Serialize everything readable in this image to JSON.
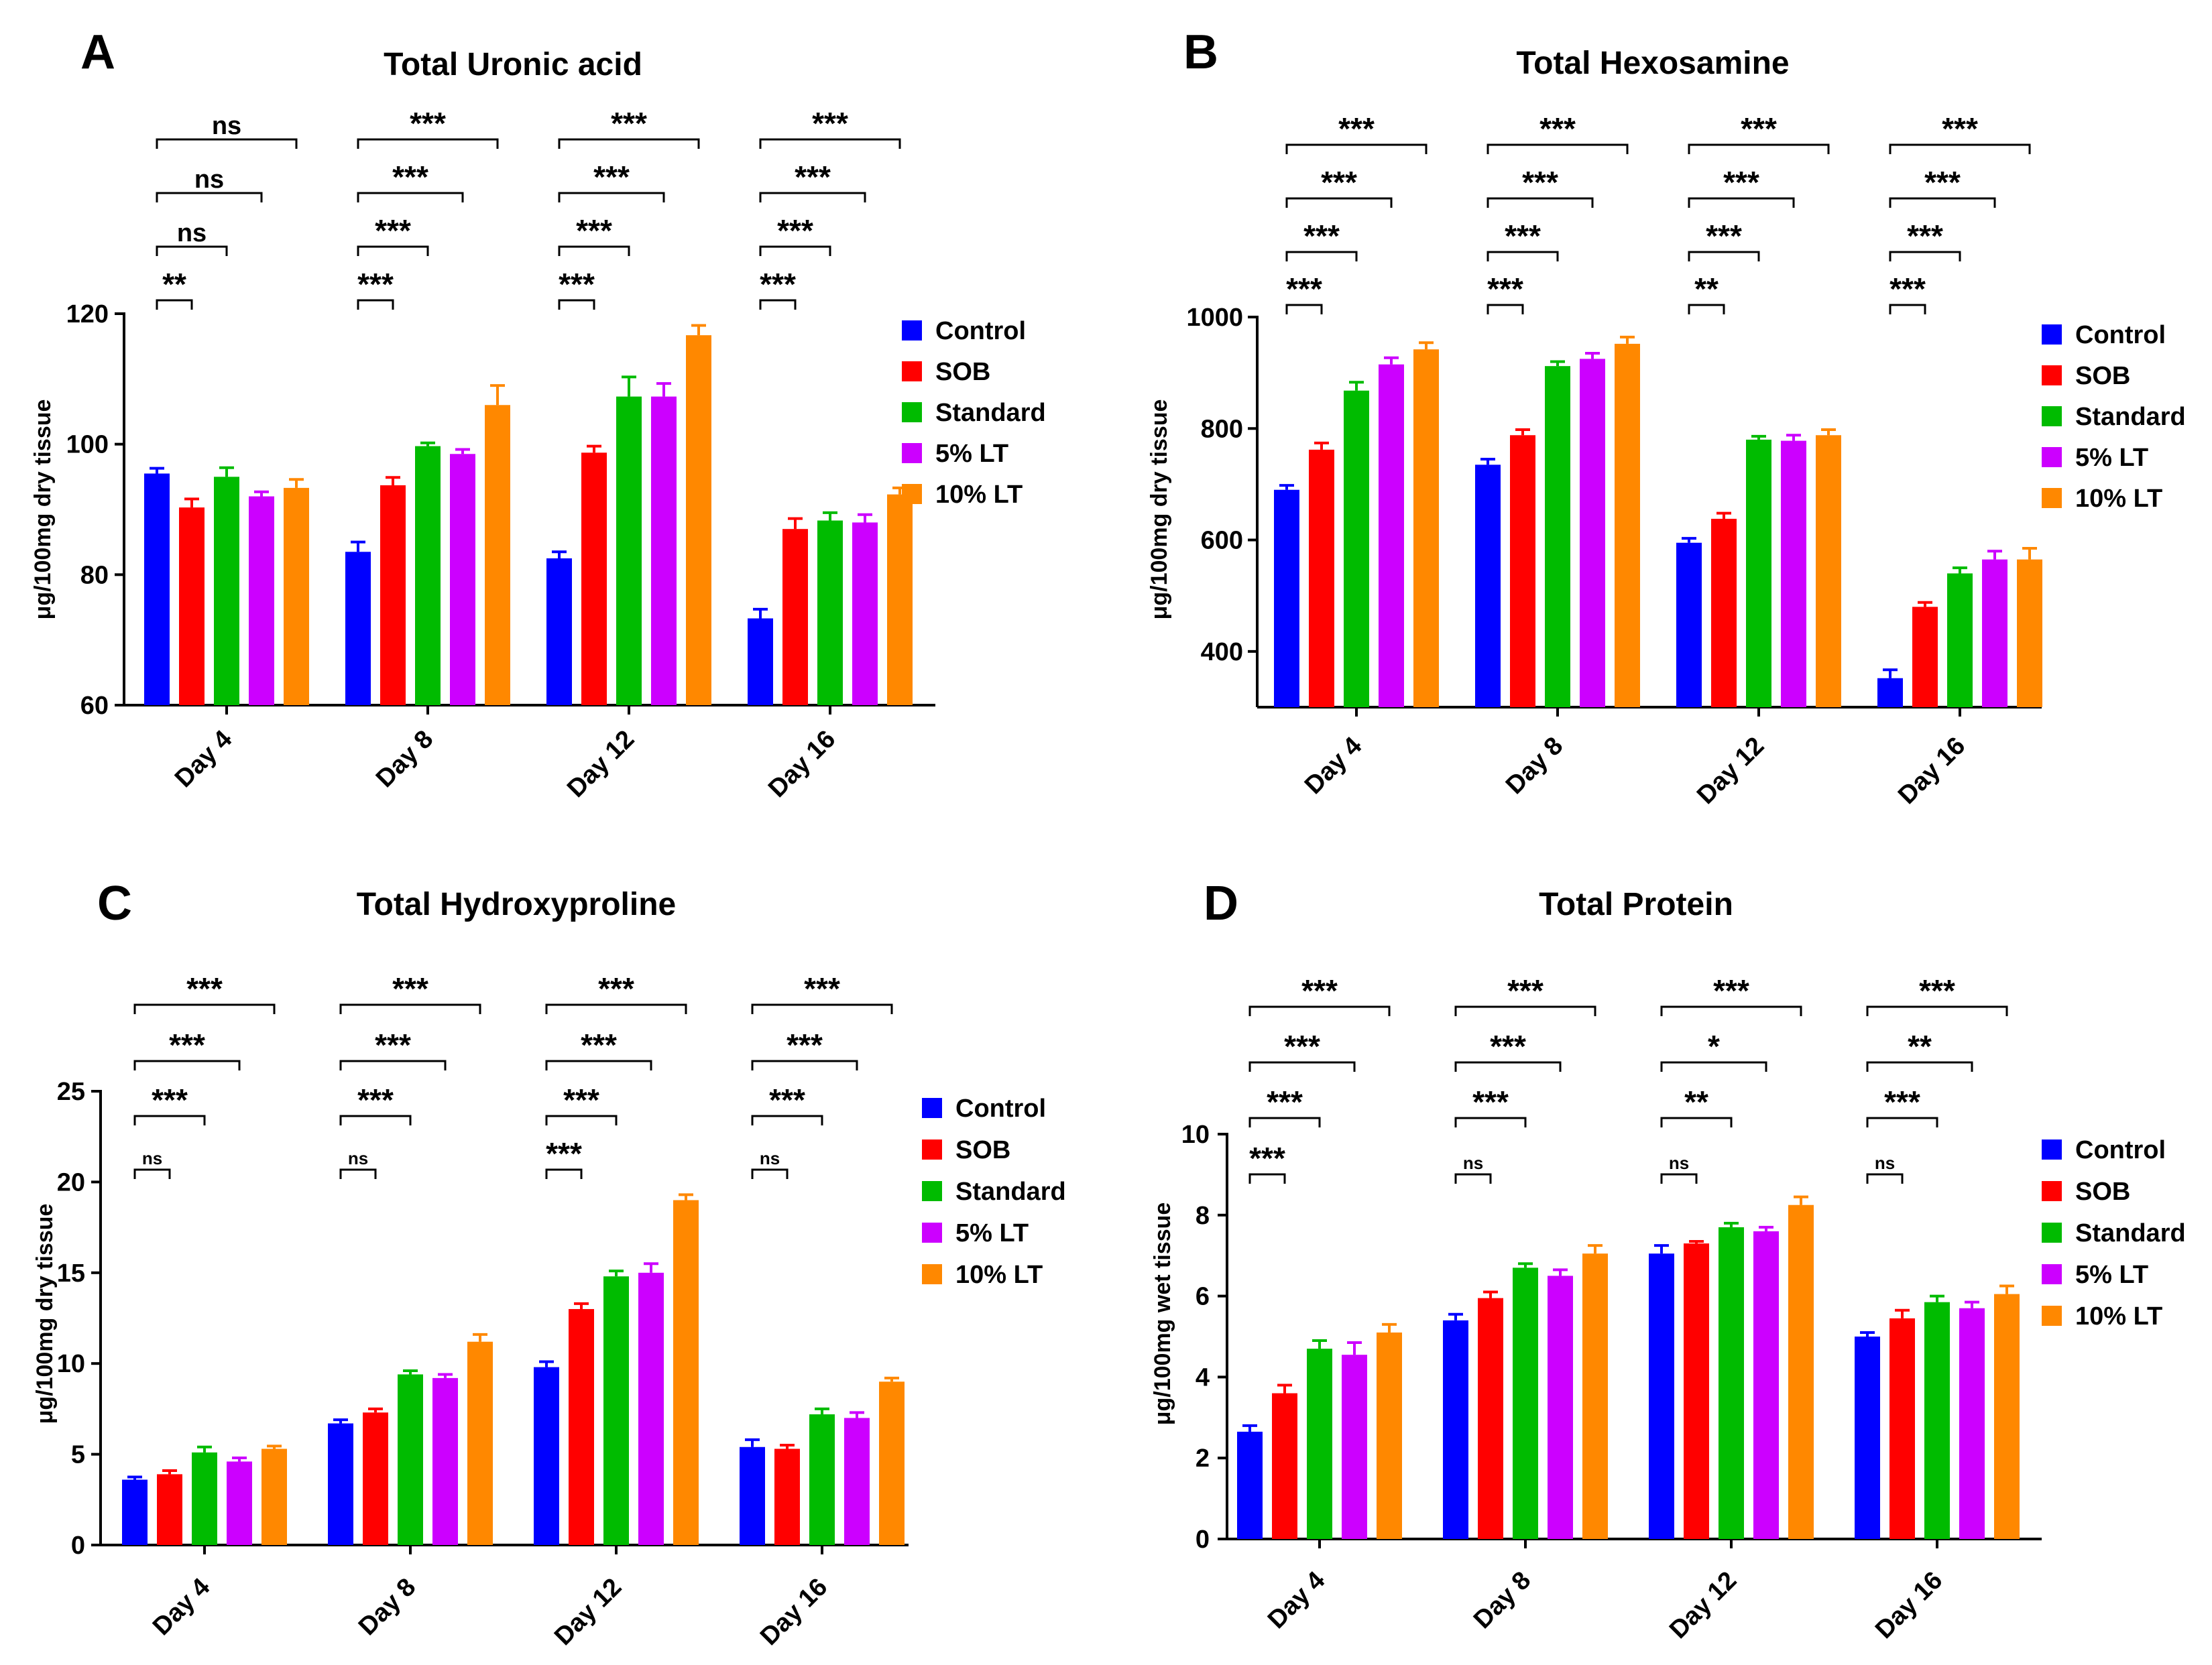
{
  "chart_data": [
    {
      "panel": "A",
      "type": "bar",
      "title": "Total Uronic acid",
      "ylabel": "μg/100mg dry tissue",
      "xlabel": "",
      "categories": [
        "Day 4",
        "Day 8",
        "Day 12",
        "Day 16"
      ],
      "ylim": [
        60,
        120
      ],
      "yticks": [
        60,
        80,
        100,
        120
      ],
      "legend_position": "right",
      "series": [
        {
          "name": "Control",
          "color": "#0000FF",
          "values": [
            95.5,
            83.5,
            82.5,
            73.3
          ],
          "errors": [
            0.8,
            1.5,
            1.0,
            1.4
          ]
        },
        {
          "name": "SOB",
          "color": "#FF0000",
          "values": [
            90.3,
            93.7,
            98.7,
            87.0
          ],
          "errors": [
            1.3,
            1.2,
            1.0,
            1.6
          ]
        },
        {
          "name": "Standard",
          "color": "#00BB00",
          "values": [
            95.0,
            99.7,
            107.3,
            88.3
          ],
          "errors": [
            1.4,
            0.5,
            3.0,
            1.2
          ]
        },
        {
          "name": "5% LT",
          "color": "#CC00FF",
          "values": [
            92.0,
            98.5,
            107.3,
            88.0
          ],
          "errors": [
            0.7,
            0.7,
            2.0,
            1.2
          ]
        },
        {
          "name": "10% LT",
          "color": "#FF8800",
          "values": [
            93.3,
            106.0,
            116.7,
            92.3
          ],
          "errors": [
            1.3,
            3.0,
            1.5,
            1.0
          ]
        }
      ],
      "significance": [
        {
          "group": 0,
          "rows": [
            "**",
            "ns",
            "ns",
            "ns"
          ]
        },
        {
          "group": 1,
          "rows": [
            "***",
            "***",
            "***",
            "***"
          ]
        },
        {
          "group": 2,
          "rows": [
            "***",
            "***",
            "***",
            "***"
          ]
        },
        {
          "group": 3,
          "rows": [
            "***",
            "***",
            "***",
            "***"
          ]
        }
      ]
    },
    {
      "panel": "B",
      "type": "bar",
      "title": "Total Hexosamine",
      "ylabel": "μg/100mg dry tissue",
      "xlabel": "",
      "categories": [
        "Day 4",
        "Day 8",
        "Day 12",
        "Day 16"
      ],
      "ylim": [
        300,
        1000
      ],
      "yticks": [
        400,
        600,
        800,
        1000
      ],
      "legend_position": "right",
      "series": [
        {
          "name": "Control",
          "color": "#0000FF",
          "values": [
            690,
            735,
            595,
            352
          ],
          "errors": [
            8,
            10,
            8,
            15
          ]
        },
        {
          "name": "SOB",
          "color": "#FF0000",
          "values": [
            762,
            788,
            638,
            480
          ],
          "errors": [
            12,
            10,
            10,
            8
          ]
        },
        {
          "name": "Standard",
          "color": "#00BB00",
          "values": [
            868,
            912,
            780,
            540
          ],
          "errors": [
            15,
            8,
            6,
            10
          ]
        },
        {
          "name": "5% LT",
          "color": "#CC00FF",
          "values": [
            915,
            925,
            778,
            565
          ],
          "errors": [
            12,
            10,
            10,
            15
          ]
        },
        {
          "name": "10% LT",
          "color": "#FF8800",
          "values": [
            942,
            952,
            788,
            565
          ],
          "errors": [
            12,
            12,
            10,
            20
          ]
        }
      ],
      "significance": [
        {
          "group": 0,
          "rows": [
            "***",
            "***",
            "***",
            "***"
          ]
        },
        {
          "group": 1,
          "rows": [
            "***",
            "***",
            "***",
            "***"
          ]
        },
        {
          "group": 2,
          "rows": [
            "**",
            "***",
            "***",
            "***"
          ]
        },
        {
          "group": 3,
          "rows": [
            "***",
            "***",
            "***",
            "***"
          ]
        }
      ]
    },
    {
      "panel": "C",
      "type": "bar",
      "title": "Total Hydroxyproline",
      "ylabel": "μg/100mg dry tissue",
      "xlabel": "",
      "categories": [
        "Day 4",
        "Day 8",
        "Day 12",
        "Day 16"
      ],
      "ylim": [
        0,
        25
      ],
      "yticks": [
        0,
        5,
        10,
        15,
        20,
        25
      ],
      "legend_position": "right",
      "series": [
        {
          "name": "Control",
          "color": "#0000FF",
          "values": [
            3.6,
            6.7,
            9.8,
            5.4
          ],
          "errors": [
            0.15,
            0.2,
            0.3,
            0.4
          ]
        },
        {
          "name": "SOB",
          "color": "#FF0000",
          "values": [
            3.9,
            7.3,
            13.0,
            5.3
          ],
          "errors": [
            0.2,
            0.2,
            0.3,
            0.2
          ]
        },
        {
          "name": "Standard",
          "color": "#00BB00",
          "values": [
            5.1,
            9.4,
            14.8,
            7.2
          ],
          "errors": [
            0.3,
            0.2,
            0.3,
            0.3
          ]
        },
        {
          "name": "5% LT",
          "color": "#CC00FF",
          "values": [
            4.6,
            9.2,
            15.0,
            7.0
          ],
          "errors": [
            0.2,
            0.2,
            0.5,
            0.3
          ]
        },
        {
          "name": "10% LT",
          "color": "#FF8800",
          "values": [
            5.3,
            11.2,
            19.0,
            9.0
          ],
          "errors": [
            0.15,
            0.4,
            0.3,
            0.2
          ]
        }
      ],
      "significance": [
        {
          "group": 0,
          "rows": [
            "ns",
            "***",
            "***",
            "***"
          ]
        },
        {
          "group": 1,
          "rows": [
            "ns",
            "***",
            "***",
            "***"
          ]
        },
        {
          "group": 2,
          "rows": [
            "***",
            "***",
            "***",
            "***"
          ]
        },
        {
          "group": 3,
          "rows": [
            "ns",
            "***",
            "***",
            "***"
          ]
        }
      ]
    },
    {
      "panel": "D",
      "type": "bar",
      "title": "Total Protein",
      "ylabel": "μg/100mg wet tissue",
      "xlabel": "",
      "categories": [
        "Day 4",
        "Day 8",
        "Day 12",
        "Day 16"
      ],
      "ylim": [
        0,
        10
      ],
      "yticks": [
        0,
        2,
        4,
        6,
        8,
        10
      ],
      "legend_position": "right",
      "series": [
        {
          "name": "Control",
          "color": "#0000FF",
          "values": [
            2.65,
            5.4,
            7.05,
            5.0
          ],
          "errors": [
            0.15,
            0.15,
            0.2,
            0.1
          ]
        },
        {
          "name": "SOB",
          "color": "#FF0000",
          "values": [
            3.6,
            5.95,
            7.3,
            5.45
          ],
          "errors": [
            0.2,
            0.15,
            0.05,
            0.2
          ]
        },
        {
          "name": "Standard",
          "color": "#00BB00",
          "values": [
            4.7,
            6.7,
            7.7,
            5.85
          ],
          "errors": [
            0.2,
            0.1,
            0.1,
            0.15
          ]
        },
        {
          "name": "5% LT",
          "color": "#CC00FF",
          "values": [
            4.55,
            6.5,
            7.6,
            5.7
          ],
          "errors": [
            0.3,
            0.15,
            0.1,
            0.15
          ]
        },
        {
          "name": "10% LT",
          "color": "#FF8800",
          "values": [
            5.1,
            7.05,
            8.25,
            6.05
          ],
          "errors": [
            0.2,
            0.2,
            0.2,
            0.2
          ]
        }
      ],
      "significance": [
        {
          "group": 0,
          "rows": [
            "***",
            "***",
            "***",
            "***"
          ]
        },
        {
          "group": 1,
          "rows": [
            "ns",
            "***",
            "***",
            "***"
          ]
        },
        {
          "group": 2,
          "rows": [
            "ns",
            "**",
            "*",
            "***"
          ]
        },
        {
          "group": 3,
          "rows": [
            "ns",
            "***",
            "**",
            "***"
          ]
        }
      ]
    }
  ]
}
